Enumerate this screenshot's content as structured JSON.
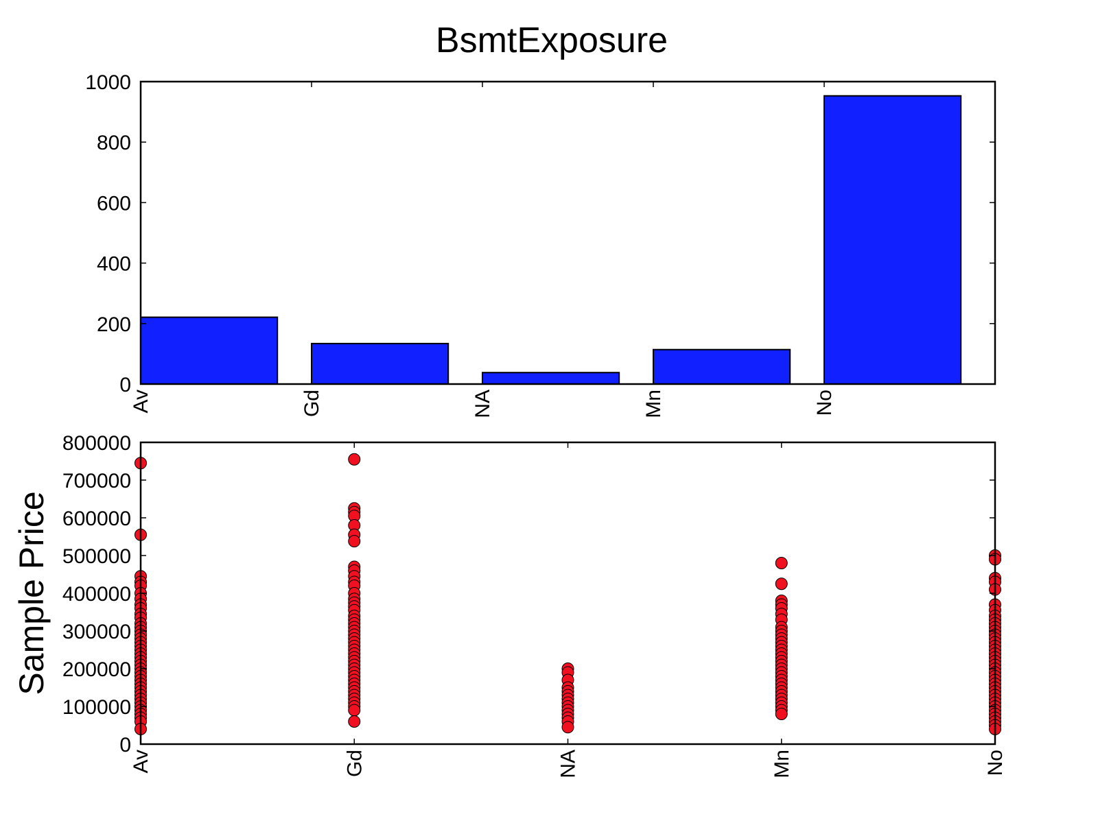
{
  "title": "BsmtExposure",
  "colors": {
    "bar": "#1020ff",
    "point": "#f01020",
    "edge": "#000000"
  },
  "chart_data": [
    {
      "type": "bar",
      "title": "BsmtExposure",
      "categories": [
        "Av",
        "Gd",
        "NA",
        "Mn",
        "No"
      ],
      "values": [
        221,
        134,
        38,
        114,
        953
      ],
      "ylim": [
        0,
        1000
      ],
      "yticks": [
        0,
        200,
        400,
        600,
        800,
        1000
      ],
      "grid": false
    },
    {
      "type": "scatter",
      "categories": [
        "Av",
        "Gd",
        "NA",
        "Mn",
        "No"
      ],
      "ylabel": "Sample Price",
      "ylim": [
        0,
        800000
      ],
      "yticks": [
        0,
        100000,
        200000,
        300000,
        400000,
        500000,
        600000,
        700000,
        800000
      ],
      "grid": false,
      "series": [
        {
          "category": "Av",
          "values": [
            745000,
            555000,
            445000,
            430000,
            420000,
            400000,
            385000,
            370000,
            360000,
            345000,
            335000,
            320000,
            310000,
            300000,
            290000,
            280000,
            270000,
            260000,
            250000,
            240000,
            230000,
            220000,
            210000,
            200000,
            190000,
            180000,
            170000,
            160000,
            150000,
            140000,
            130000,
            120000,
            110000,
            100000,
            90000,
            80000,
            70000,
            60000,
            40000
          ]
        },
        {
          "category": "Gd",
          "values": [
            755000,
            625000,
            615000,
            605000,
            580000,
            555000,
            538000,
            470000,
            460000,
            445000,
            430000,
            420000,
            400000,
            385000,
            375000,
            365000,
            355000,
            340000,
            330000,
            320000,
            310000,
            300000,
            290000,
            280000,
            270000,
            260000,
            250000,
            240000,
            230000,
            220000,
            210000,
            200000,
            190000,
            180000,
            170000,
            160000,
            150000,
            140000,
            130000,
            120000,
            110000,
            100000,
            90000,
            60000
          ]
        },
        {
          "category": "NA",
          "values": [
            200000,
            190000,
            170000,
            150000,
            140000,
            130000,
            120000,
            110000,
            100000,
            90000,
            80000,
            70000,
            60000,
            45000
          ]
        },
        {
          "category": "Mn",
          "values": [
            480000,
            425000,
            380000,
            370000,
            360000,
            345000,
            330000,
            310000,
            300000,
            290000,
            280000,
            270000,
            260000,
            250000,
            240000,
            230000,
            220000,
            210000,
            200000,
            190000,
            180000,
            170000,
            160000,
            150000,
            140000,
            130000,
            120000,
            110000,
            100000,
            90000,
            80000
          ]
        },
        {
          "category": "No",
          "values": [
            500000,
            490000,
            440000,
            430000,
            410000,
            370000,
            355000,
            340000,
            330000,
            320000,
            310000,
            300000,
            290000,
            280000,
            270000,
            260000,
            250000,
            240000,
            230000,
            220000,
            210000,
            200000,
            190000,
            180000,
            170000,
            160000,
            150000,
            140000,
            130000,
            120000,
            110000,
            100000,
            90000,
            80000,
            70000,
            60000,
            50000,
            40000
          ]
        }
      ]
    }
  ]
}
